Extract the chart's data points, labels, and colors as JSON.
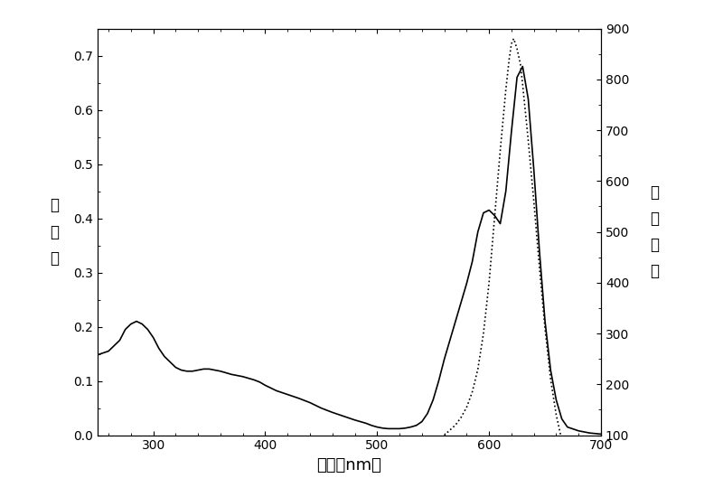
{
  "title": "",
  "xlabel": "波长（nm）",
  "ylabel_left": "吸\n光\n度",
  "ylabel_right": "相\n对\n荧\n光",
  "xlim": [
    250,
    700
  ],
  "ylim_left": [
    0.0,
    0.75
  ],
  "ylim_right": [
    100,
    900
  ],
  "yticks_left": [
    0.0,
    0.1,
    0.2,
    0.3,
    0.4,
    0.5,
    0.6,
    0.7
  ],
  "yticks_right": [
    100,
    200,
    300,
    400,
    500,
    600,
    700,
    800,
    900
  ],
  "xticks": [
    300,
    400,
    500,
    600,
    700
  ],
  "absorption_x": [
    250,
    260,
    265,
    270,
    275,
    280,
    285,
    290,
    295,
    300,
    305,
    310,
    315,
    320,
    325,
    330,
    335,
    340,
    345,
    350,
    355,
    360,
    365,
    370,
    375,
    380,
    385,
    390,
    395,
    400,
    410,
    420,
    430,
    440,
    445,
    450,
    460,
    470,
    480,
    490,
    495,
    500,
    505,
    510,
    515,
    520,
    525,
    530,
    535,
    540,
    545,
    550,
    555,
    560,
    565,
    570,
    575,
    580,
    585,
    590,
    595,
    600,
    605,
    610,
    615,
    620,
    625,
    630,
    635,
    640,
    645,
    650,
    655,
    660,
    665,
    670,
    680,
    690,
    700
  ],
  "absorption_y": [
    0.148,
    0.155,
    0.165,
    0.175,
    0.195,
    0.205,
    0.21,
    0.205,
    0.195,
    0.18,
    0.16,
    0.145,
    0.135,
    0.125,
    0.12,
    0.118,
    0.118,
    0.12,
    0.122,
    0.122,
    0.12,
    0.118,
    0.115,
    0.112,
    0.11,
    0.108,
    0.105,
    0.102,
    0.098,
    0.092,
    0.082,
    0.075,
    0.068,
    0.06,
    0.055,
    0.05,
    0.042,
    0.035,
    0.028,
    0.022,
    0.018,
    0.015,
    0.013,
    0.012,
    0.012,
    0.012,
    0.013,
    0.015,
    0.018,
    0.025,
    0.04,
    0.065,
    0.1,
    0.14,
    0.175,
    0.21,
    0.245,
    0.28,
    0.32,
    0.375,
    0.41,
    0.415,
    0.405,
    0.39,
    0.45,
    0.56,
    0.66,
    0.68,
    0.62,
    0.49,
    0.34,
    0.21,
    0.12,
    0.065,
    0.03,
    0.015,
    0.008,
    0.004,
    0.002
  ],
  "fluorescence_x": [
    560,
    565,
    570,
    575,
    580,
    585,
    590,
    595,
    600,
    605,
    610,
    615,
    618,
    620,
    622,
    625,
    628,
    630,
    635,
    640,
    645,
    650,
    655,
    660,
    665,
    670,
    675,
    680,
    685,
    690,
    695,
    700
  ],
  "fluorescence_y": [
    100,
    110,
    120,
    135,
    155,
    185,
    230,
    300,
    400,
    530,
    660,
    780,
    840,
    870,
    880,
    860,
    830,
    790,
    680,
    560,
    430,
    310,
    210,
    140,
    90,
    55,
    30,
    18,
    12,
    8,
    5,
    3
  ],
  "line_color": "#000000",
  "background_color": "#ffffff"
}
